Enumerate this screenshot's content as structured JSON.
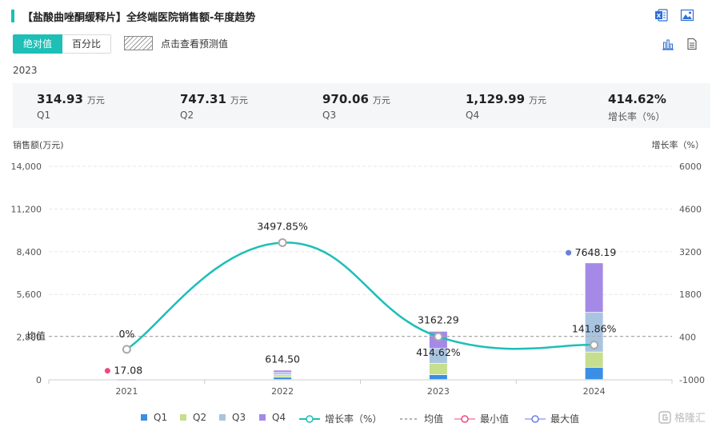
{
  "header": {
    "title": "【盐酸曲唑酮缓释片】全终端医院销售额-年度趋势"
  },
  "toolbar": {
    "btn_absolute": "绝对值",
    "btn_percent": "百分比",
    "forecast_label": "点击查看预测值"
  },
  "summary": {
    "year": "2023",
    "items": [
      {
        "value": "314.93",
        "unit": "万元",
        "label": "Q1"
      },
      {
        "value": "747.31",
        "unit": "万元",
        "label": "Q2"
      },
      {
        "value": "970.06",
        "unit": "万元",
        "label": "Q3"
      },
      {
        "value": "1,129.99",
        "unit": "万元",
        "label": "Q4"
      },
      {
        "value": "414.62%",
        "unit": "",
        "label": "增长率（%）"
      }
    ]
  },
  "colors": {
    "accent": "#1dbfb6",
    "q1": "#3a8ee6",
    "q2": "#c5df8e",
    "q3": "#a9c4e0",
    "q4": "#a48ae6",
    "min": "#f0477f",
    "max": "#6a7fdb"
  },
  "chart_data": {
    "type": "bar",
    "ylabel_left": "销售额(万元)",
    "ylabel_right": "增长率（%）",
    "categories": [
      "2021",
      "2022",
      "2023",
      "2024"
    ],
    "y_ticks": [
      "0",
      "2,800",
      "5,600",
      "8,400",
      "11,200",
      "14,000"
    ],
    "y2_ticks": [
      "-1000",
      "400",
      "1800",
      "3200",
      "4600",
      "6000"
    ],
    "ylim": [
      0,
      14000
    ],
    "y2lim": [
      -1000,
      6000
    ],
    "series": [
      {
        "name": "Q1",
        "stack": true,
        "values": [
          4.27,
          153.6,
          314.93,
          800.0
        ]
      },
      {
        "name": "Q2",
        "stack": true,
        "values": [
          4.27,
          153.6,
          747.31,
          1000.0
        ]
      },
      {
        "name": "Q3",
        "stack": true,
        "values": [
          4.27,
          153.6,
          970.06,
          2600.0
        ]
      },
      {
        "name": "Q4",
        "stack": true,
        "values": [
          4.27,
          153.7,
          1129.99,
          3248.19
        ]
      }
    ],
    "totals": [
      17.08,
      614.5,
      3162.29,
      7648.19
    ],
    "total_labels": [
      "17.08",
      "614.50",
      "3162.29",
      "7648.19"
    ],
    "growth": [
      0,
      3497.85,
      414.62,
      141.86
    ],
    "growth_labels": [
      "0%",
      "3497.85%",
      "414.62%",
      "141.86%"
    ],
    "mean_label": "均值",
    "mean_value": 2860,
    "min_index": 0,
    "max_index": 3,
    "legend": [
      "Q1",
      "Q2",
      "Q3",
      "Q4",
      "增长率（%）",
      "均值",
      "最小值",
      "最大值"
    ],
    "grid": true
  },
  "watermark": "格隆汇"
}
